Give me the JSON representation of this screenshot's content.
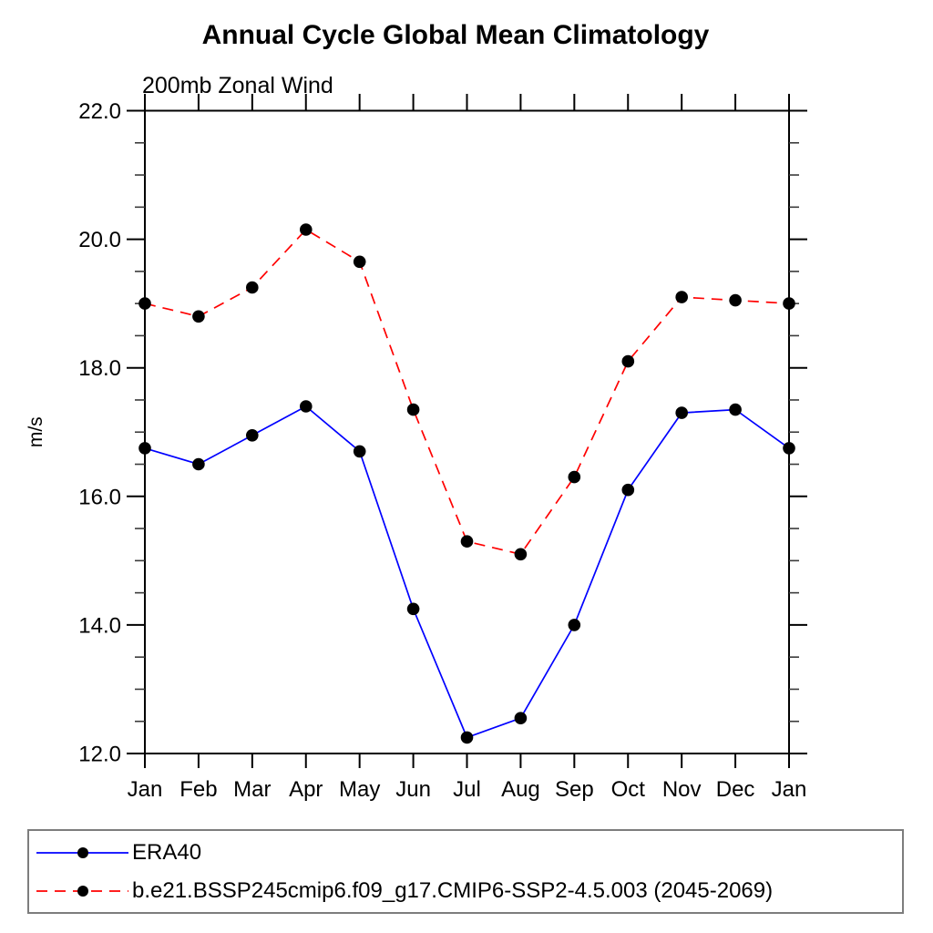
{
  "page": {
    "title": "Annual Cycle Global Mean Climatology",
    "subtitle": "200mb Zonal Wind"
  },
  "chart_data": {
    "type": "line",
    "title": "Annual Cycle Global Mean Climatology",
    "subtitle": "200mb Zonal Wind",
    "xlabel": "",
    "ylabel": "m/s",
    "categories": [
      "Jan",
      "Feb",
      "Mar",
      "Apr",
      "May",
      "Jun",
      "Jul",
      "Aug",
      "Sep",
      "Oct",
      "Nov",
      "Dec",
      "Jan"
    ],
    "series": [
      {
        "name": "ERA40",
        "color": "#0000ff",
        "line_style": "solid",
        "marker": "circle",
        "marker_color": "#000000",
        "values": [
          16.75,
          16.5,
          16.95,
          17.4,
          16.7,
          14.25,
          12.25,
          12.55,
          14.0,
          16.1,
          17.3,
          17.35,
          16.75
        ]
      },
      {
        "name": "b.e21.BSSP245cmip6.f09_g17.CMIP6-SSP2-4.5.003 (2045-2069)",
        "color": "#ff0000",
        "line_style": "dashed",
        "marker": "circle",
        "marker_color": "#000000",
        "values": [
          19.0,
          18.8,
          19.25,
          20.15,
          19.65,
          17.35,
          15.3,
          15.1,
          16.3,
          18.1,
          19.1,
          19.05,
          19.0
        ]
      }
    ],
    "ylim": [
      12.0,
      22.0
    ],
    "yticks": [
      12.0,
      14.0,
      16.0,
      18.0,
      20.0,
      22.0
    ],
    "ytick_labels": [
      "12.0",
      "14.0",
      "16.0",
      "18.0",
      "20.0",
      "22.0"
    ],
    "y_minor_tick_step": 0.5,
    "grid": false,
    "legend_position": "bottom"
  },
  "legend": {
    "entries": [
      {
        "label": "ERA40",
        "color": "#0000ff",
        "style": "solid"
      },
      {
        "label": "b.e21.BSSP245cmip6.f09_g17.CMIP6-SSP2-4.5.003 (2045-2069)",
        "color": "#ff0000",
        "style": "dashed"
      }
    ]
  },
  "colors": {
    "axis": "#000000",
    "tick_label": "#000000",
    "legend_border": "#7d7d7d",
    "background": "#ffffff"
  }
}
